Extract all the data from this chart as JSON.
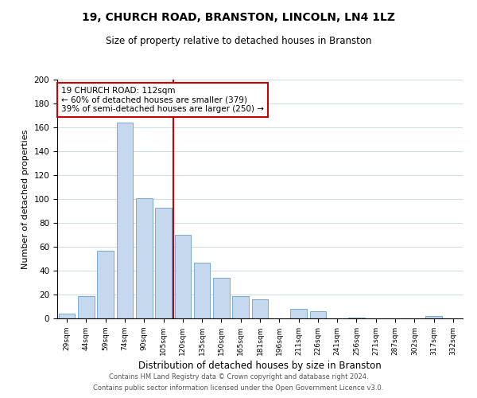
{
  "title": "19, CHURCH ROAD, BRANSTON, LINCOLN, LN4 1LZ",
  "subtitle": "Size of property relative to detached houses in Branston",
  "xlabel": "Distribution of detached houses by size in Branston",
  "ylabel": "Number of detached properties",
  "bar_labels": [
    "29sqm",
    "44sqm",
    "59sqm",
    "74sqm",
    "90sqm",
    "105sqm",
    "120sqm",
    "135sqm",
    "150sqm",
    "165sqm",
    "181sqm",
    "196sqm",
    "211sqm",
    "226sqm",
    "241sqm",
    "256sqm",
    "271sqm",
    "287sqm",
    "302sqm",
    "317sqm",
    "332sqm"
  ],
  "bar_values": [
    4,
    19,
    57,
    164,
    101,
    93,
    70,
    47,
    34,
    19,
    16,
    0,
    8,
    6,
    0,
    1,
    0,
    0,
    0,
    2,
    0
  ],
  "bar_color": "#c5d8ee",
  "bar_edge_color": "#7aabce",
  "vline_x": 5.5,
  "vline_color": "#cc0000",
  "annotation_title": "19 CHURCH ROAD: 112sqm",
  "annotation_line1": "← 60% of detached houses are smaller (379)",
  "annotation_line2": "39% of semi-detached houses are larger (250) →",
  "annotation_box_color": "#ffffff",
  "annotation_box_edge": "#cc0000",
  "ylim": [
    0,
    200
  ],
  "yticks": [
    0,
    20,
    40,
    60,
    80,
    100,
    120,
    140,
    160,
    180,
    200
  ],
  "footer1": "Contains HM Land Registry data © Crown copyright and database right 2024.",
  "footer2": "Contains public sector information licensed under the Open Government Licence v3.0.",
  "background_color": "#ffffff",
  "grid_color": "#ccdde8"
}
